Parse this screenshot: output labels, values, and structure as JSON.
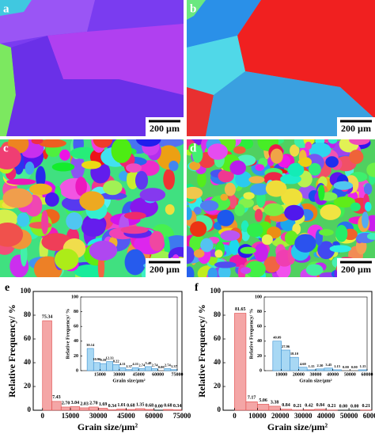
{
  "panels": [
    {
      "label": "a",
      "scale_bar": "200 µm"
    },
    {
      "label": "b",
      "scale_bar": "200 µm"
    },
    {
      "label": "c",
      "scale_bar": "200 µm"
    },
    {
      "label": "d",
      "scale_bar": "200 µm"
    }
  ],
  "chart_data": [
    {
      "type": "histogram",
      "label": "e",
      "x_label": "Grain size/µm²",
      "y_label": "Relative Frequency/ %",
      "bins": [
        0,
        5000,
        10000,
        15000,
        20000,
        25000,
        30000,
        35000,
        40000,
        45000,
        50000,
        55000,
        60000,
        65000,
        70000,
        75000
      ],
      "values": [
        75.34,
        7.43,
        2.7,
        3.04,
        2.03,
        2.7,
        1.69,
        0.34,
        1.01,
        0.68,
        1.35,
        0.68,
        0,
        0.68,
        0.34
      ],
      "value_labels": [
        "75.34",
        "7.43",
        "2.70",
        "3.04",
        "2.03",
        "2.70",
        "1.69",
        "0.34",
        "1.01",
        "0.68",
        "1.35",
        "0.68",
        "0.00",
        "0.68",
        "0.34"
      ],
      "color": "#f4a6a6",
      "edge_color": "#e04848",
      "xlim": [
        -5000,
        75000
      ],
      "xticks": [
        0,
        15000,
        30000,
        45000,
        60000,
        75000
      ],
      "ylim": [
        0,
        100
      ],
      "yticks": [
        0,
        20,
        40,
        60,
        80,
        100
      ]
    },
    {
      "type": "histogram",
      "x_label": "Grain size/µm²",
      "y_label": "Relative Frequency/ %",
      "bins": [
        5000,
        10000,
        15000,
        20000,
        25000,
        30000,
        35000,
        40000,
        45000,
        50000,
        55000,
        60000,
        65000,
        70000,
        75000
      ],
      "values": [
        30.14,
        10.96,
        9.59,
        12.33,
        8.22,
        4.11,
        1.37,
        4.11,
        2.74,
        5.48,
        2.74,
        0,
        2.74,
        1.37
      ],
      "value_labels": [
        "30.14",
        "10.96",
        "9.59",
        "12.33",
        "8.22",
        "4.11",
        "1.37",
        "4.11",
        "2.74",
        "5.48",
        "2.74",
        "0.00",
        "2.74",
        "1.37"
      ],
      "color": "#a8d8f4",
      "edge_color": "#3a8fd0",
      "xlim": [
        0,
        75000
      ],
      "xticks": [
        15000,
        30000,
        45000,
        60000,
        75000
      ],
      "ylim": [
        0,
        100
      ],
      "yticks": [
        0,
        20,
        40,
        60,
        80,
        100
      ]
    },
    {
      "type": "histogram",
      "label": "f",
      "x_label": "Grain size/µm²",
      "y_label": "Relative Frequency/ %",
      "bins": [
        0,
        5000,
        10000,
        15000,
        20000,
        25000,
        30000,
        35000,
        40000,
        45000,
        50000,
        55000,
        60000
      ],
      "values": [
        81.65,
        7.17,
        5.06,
        3.38,
        0.84,
        0.21,
        0.42,
        0.84,
        0.21,
        0,
        0,
        0.21
      ],
      "value_labels": [
        "81.65",
        "7.17",
        "5.06",
        "3.38",
        "0.84",
        "0.21",
        "0.42",
        "0.84",
        "0.21",
        "0.00",
        "0.00",
        "0.21"
      ],
      "color": "#f4a6a6",
      "edge_color": "#e04848",
      "xlim": [
        -5000,
        60000
      ],
      "xticks": [
        0,
        10000,
        20000,
        30000,
        40000,
        50000,
        60000
      ],
      "ylim": [
        0,
        100
      ],
      "yticks": [
        0,
        20,
        40,
        60,
        80,
        100
      ]
    },
    {
      "type": "histogram",
      "x_label": "Grain size/µm²",
      "y_label": "Relative Frequency/ %",
      "bins": [
        5000,
        10000,
        15000,
        20000,
        25000,
        30000,
        35000,
        40000,
        45000,
        50000,
        55000,
        60000
      ],
      "values": [
        40.09,
        27.96,
        18.1,
        4.6,
        1.15,
        2.3,
        3.45,
        1.15,
        0,
        0,
        1.15
      ],
      "value_labels": [
        "40.09",
        "27.96",
        "18.10",
        "4.60",
        "1.15",
        "2.30",
        "3.45",
        "1.15",
        "0.00",
        "0.00",
        "1.15"
      ],
      "color": "#a8d8f4",
      "edge_color": "#3a8fd0",
      "xlim": [
        0,
        60000
      ],
      "xticks": [
        10000,
        20000,
        30000,
        40000,
        50000,
        60000
      ],
      "ylim": [
        0,
        100
      ],
      "yticks": [
        0,
        20,
        40,
        60,
        80,
        100
      ]
    }
  ]
}
